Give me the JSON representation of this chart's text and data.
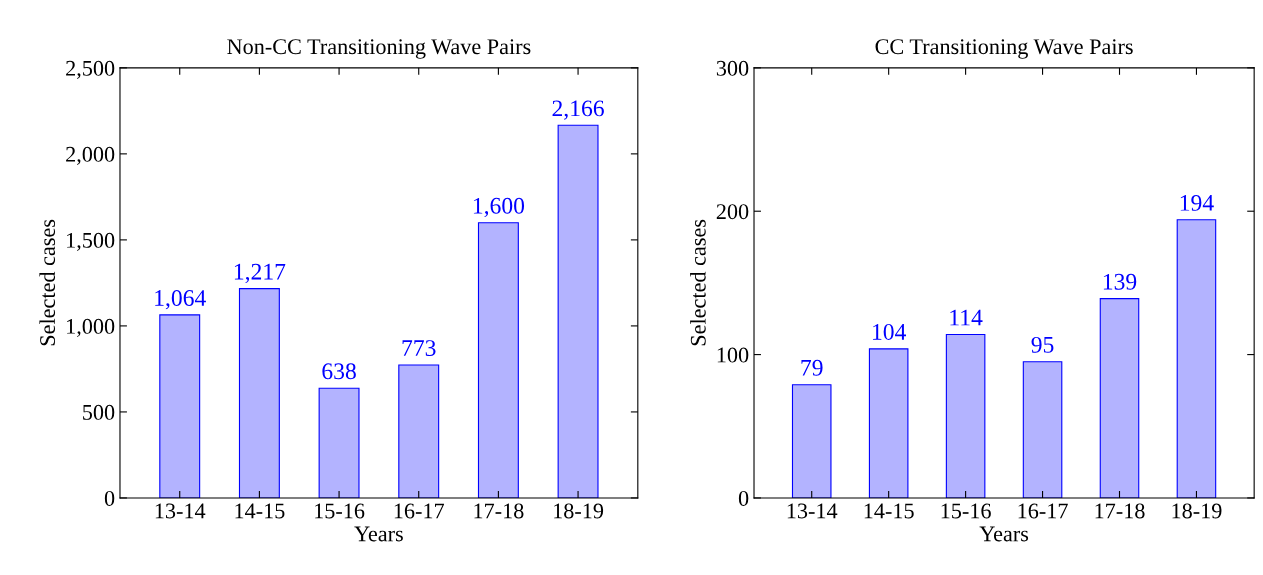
{
  "chart_data": [
    {
      "type": "bar",
      "title": "Non-CC Transitioning Wave Pairs",
      "xlabel": "Years",
      "ylabel": "Selected cases",
      "categories": [
        "13-14",
        "14-15",
        "15-16",
        "16-17",
        "17-18",
        "18-19"
      ],
      "values": [
        1064,
        1217,
        638,
        773,
        1600,
        2166
      ],
      "value_labels": [
        "1,064",
        "1,217",
        "638",
        "773",
        "1,600",
        "2,166"
      ],
      "color": "#b3b3ff",
      "ylim": [
        0,
        2500
      ],
      "yticks": [
        0,
        500,
        {
          "value": 1000,
          "label": "1,000"
        },
        {
          "value": 1500,
          "label": "1,500"
        },
        {
          "value": 2000,
          "label": "2,000"
        },
        {
          "value": 2500,
          "label": "2,500"
        }
      ],
      "grid": false,
      "legend": false
    },
    {
      "type": "bar",
      "title": "CC Transitioning Wave Pairs",
      "xlabel": "Years",
      "ylabel": "Selected cases",
      "categories": [
        "13-14",
        "14-15",
        "15-16",
        "16-17",
        "17-18",
        "18-19"
      ],
      "values": [
        79,
        104,
        114,
        95,
        139,
        194
      ],
      "value_labels": [
        "79",
        "104",
        "114",
        "95",
        "139",
        "194"
      ],
      "color": "#b3b3ff",
      "ylim": [
        0,
        300
      ],
      "yticks": [
        0,
        100,
        200,
        300
      ],
      "grid": false,
      "legend": false
    }
  ]
}
